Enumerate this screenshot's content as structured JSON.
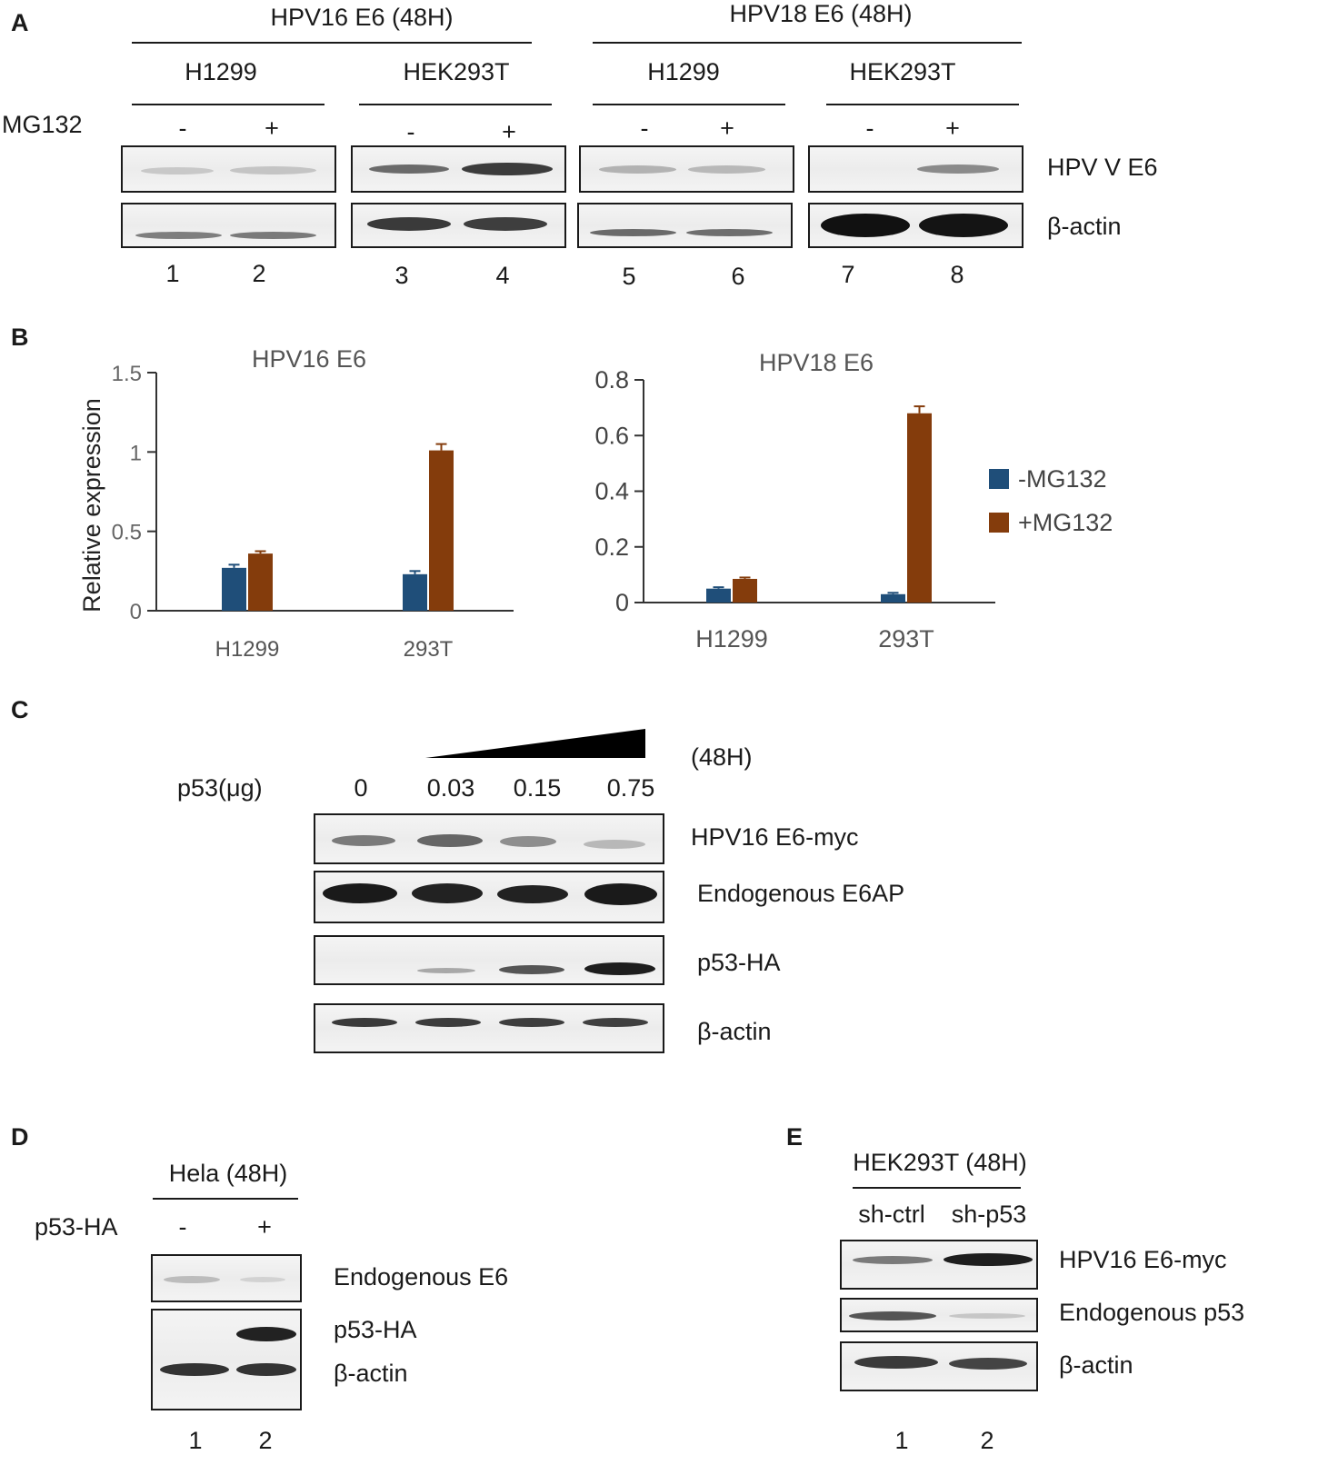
{
  "panel_letters": [
    "A",
    "B",
    "C",
    "D",
    "E"
  ],
  "panel_a": {
    "groups": [
      "HPV16 E6 (48H)",
      "HPV18 E6 (48H)"
    ],
    "cells": [
      "H1299",
      "HEK293T",
      "H1299",
      "HEK293T"
    ],
    "treatment_label": "MG132",
    "treatment_signs": [
      "-",
      "+",
      "-",
      "+",
      "-",
      "+",
      "-",
      "+"
    ],
    "row_labels": [
      "HPV V E6",
      "β-actin"
    ],
    "lanes": [
      "1",
      "2",
      "3",
      "4",
      "5",
      "6",
      "7",
      "8"
    ]
  },
  "panel_b": {
    "ylabel": "Relative expression",
    "legend": [
      "-MG132",
      "+MG132"
    ],
    "colors": {
      "minus": "#1f4e79",
      "plus": "#843c0c"
    },
    "chart_data": [
      {
        "type": "bar",
        "title": "HPV16 E6",
        "categories": [
          "H1299",
          "293T"
        ],
        "ylim": [
          0,
          1.5
        ],
        "yticks": [
          "0",
          "0.5",
          "1",
          "1.5"
        ],
        "series": [
          {
            "name": "-MG132",
            "values": [
              0.27,
              0.23
            ],
            "errors": [
              0.02,
              0.02
            ]
          },
          {
            "name": "+MG132",
            "values": [
              0.36,
              1.01
            ],
            "errors": [
              0.015,
              0.04
            ]
          }
        ]
      },
      {
        "type": "bar",
        "title": "HPV18 E6",
        "categories": [
          "H1299",
          "293T"
        ],
        "ylim": [
          0,
          0.8
        ],
        "yticks": [
          "0",
          "0.2",
          "0.4",
          "0.6",
          "0.8"
        ],
        "series": [
          {
            "name": "-MG132",
            "values": [
              0.05,
              0.03
            ],
            "errors": [
              0.005,
              0.005
            ]
          },
          {
            "name": "+MG132",
            "values": [
              0.085,
              0.68
            ],
            "errors": [
              0.005,
              0.025
            ]
          }
        ]
      }
    ]
  },
  "panel_c": {
    "time": "(48H)",
    "dose_label": "p53(μg)",
    "doses": [
      "0",
      "0.03",
      "0.15",
      "0.75"
    ],
    "row_labels": [
      "HPV16 E6-myc",
      "Endogenous E6AP",
      "p53-HA",
      "β-actin"
    ]
  },
  "panel_d": {
    "cell": "Hela (48H)",
    "treatment_label": "p53-HA",
    "signs": [
      "-",
      "+"
    ],
    "row_labels": [
      "Endogenous E6",
      "p53-HA",
      "β-actin"
    ],
    "lanes": [
      "1",
      "2"
    ]
  },
  "panel_e": {
    "cell": "HEK293T (48H)",
    "conditions": [
      "sh-ctrl",
      "sh-p53"
    ],
    "row_labels": [
      "HPV16 E6-myc",
      "Endogenous p53",
      "β-actin"
    ],
    "lanes": [
      "1",
      "2"
    ]
  }
}
